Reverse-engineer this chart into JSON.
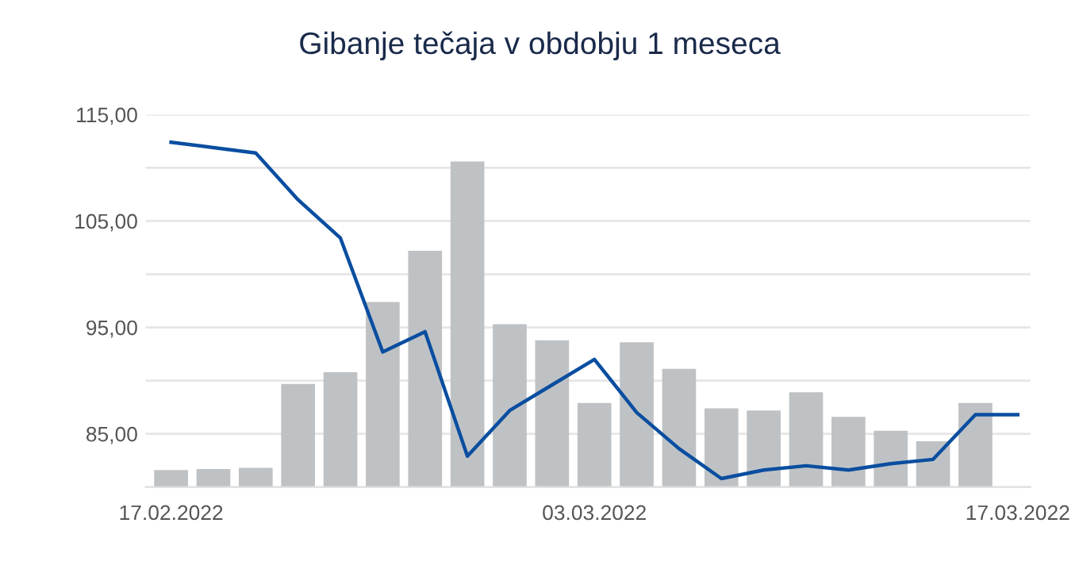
{
  "chart_data": {
    "type": "bar",
    "title": "Gibanje tečaja v obdobju 1 meseca",
    "categories": [
      "17.02.2022",
      null,
      null,
      null,
      null,
      null,
      null,
      null,
      null,
      null,
      "03.03.2022",
      null,
      null,
      null,
      null,
      null,
      null,
      null,
      null,
      null,
      "17.03.2022"
    ],
    "series": [
      {
        "color": "#bfc2c5",
        "values": [
          81.6,
          81.7,
          81.8,
          89.7,
          90.8,
          97.4,
          102.2,
          110.6,
          95.3,
          93.8,
          87.9,
          93.6,
          91.1,
          87.4,
          87.2,
          88.9,
          86.6,
          85.3,
          84.3,
          87.9,
          null
        ]
      },
      {
        "type": "line",
        "color": "#0a4ea0",
        "values": [
          112.4,
          111.9,
          111.4,
          107.0,
          103.4,
          92.7,
          94.6,
          82.9,
          87.2,
          89.6,
          92.0,
          87.0,
          83.6,
          80.8,
          81.6,
          82.0,
          81.6,
          82.2,
          82.6,
          86.8,
          86.8
        ]
      }
    ],
    "ylim": [
      80,
      115
    ],
    "yticks": [
      {
        "value": 85,
        "label": "85,00"
      },
      {
        "value": 90,
        "label": null
      },
      {
        "value": 95,
        "label": "95,00"
      },
      {
        "value": 100,
        "label": null
      },
      {
        "value": 105,
        "label": "105,00"
      },
      {
        "value": 110,
        "label": null
      },
      {
        "value": 115,
        "label": "115,00"
      }
    ],
    "grid": "y",
    "marker": "none",
    "line_style": "solid"
  }
}
